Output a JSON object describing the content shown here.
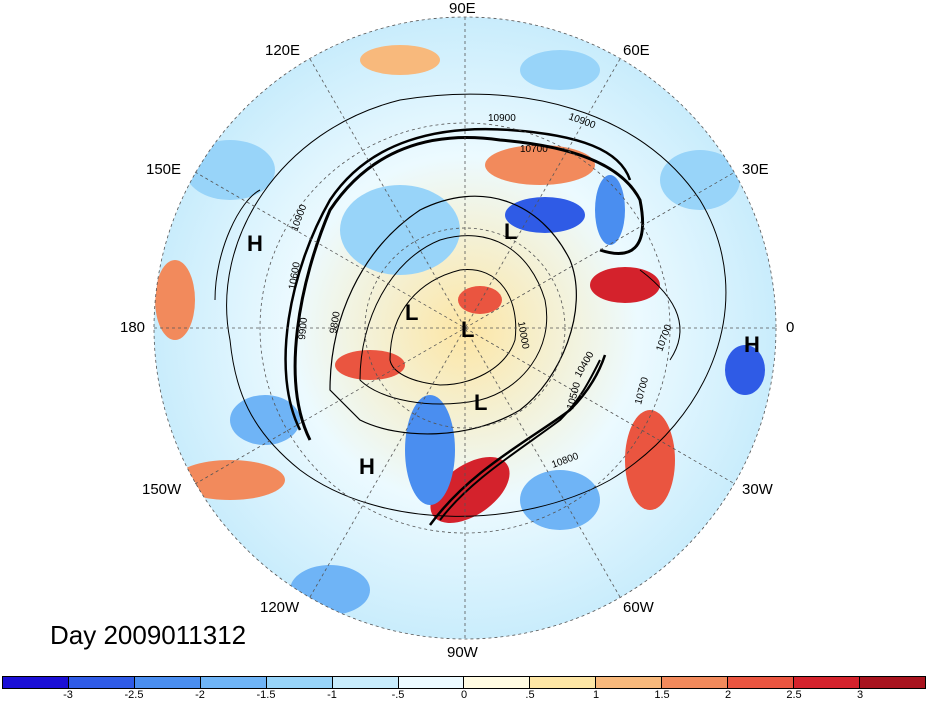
{
  "title": "Day 2009011312",
  "longitude_labels": {
    "e90": "90E",
    "e60": "60E",
    "e30": "30E",
    "zero": "0",
    "w30": "30W",
    "w60": "60W",
    "w90": "90W",
    "w120": "120W",
    "w150": "150W",
    "lon180": "180",
    "e150": "150E",
    "e120": "120E"
  },
  "pressure_centers": [
    {
      "type": "H"
    },
    {
      "type": "H"
    },
    {
      "type": "H"
    },
    {
      "type": "L"
    },
    {
      "type": "L"
    },
    {
      "type": "L"
    },
    {
      "type": "L"
    }
  ],
  "contour_labels": [
    "10900",
    "10900",
    "10700",
    "10900",
    "10600",
    "9800",
    "9900",
    "10500",
    "10700",
    "10800",
    "10700",
    "10000",
    "10400"
  ],
  "colorbar": {
    "colors": [
      "#1b0fd6",
      "#2f5be6",
      "#4a8ef0",
      "#6fb4f6",
      "#98d4f9",
      "#c8ecfc",
      "#ecfaff",
      "#fffbe2",
      "#fde6a5",
      "#f8b97c",
      "#f28a5c",
      "#ea5540",
      "#d4222c",
      "#a8131e"
    ],
    "ticks": [
      "-3",
      "-2.5",
      "-2",
      "-1.5",
      "-1",
      "-.5",
      "0",
      ".5",
      "1",
      "1.5",
      "2",
      "2.5",
      "3"
    ]
  }
}
